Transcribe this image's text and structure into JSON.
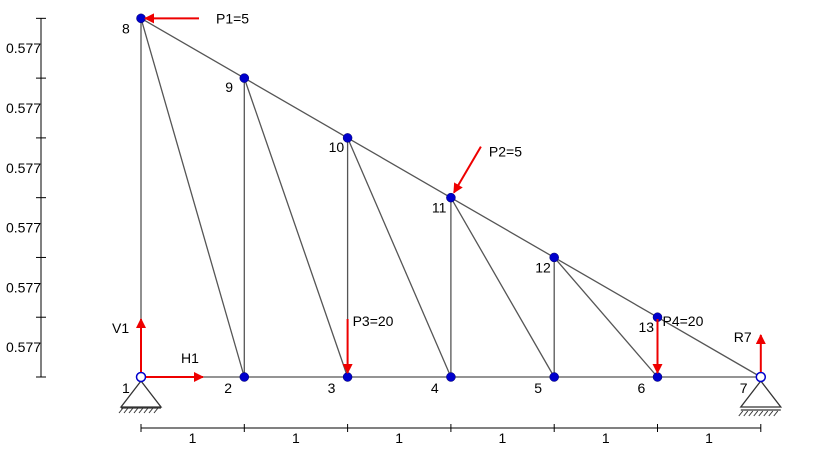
{
  "diagram": {
    "nodes": [
      {
        "id": "1",
        "label": "1",
        "x": 0,
        "y": 0,
        "support": "pin"
      },
      {
        "id": "2",
        "label": "2",
        "x": 1,
        "y": 0
      },
      {
        "id": "3",
        "label": "3",
        "x": 2,
        "y": 0
      },
      {
        "id": "4",
        "label": "4",
        "x": 3,
        "y": 0
      },
      {
        "id": "5",
        "label": "5",
        "x": 4,
        "y": 0
      },
      {
        "id": "6",
        "label": "6",
        "x": 5,
        "y": 0
      },
      {
        "id": "7",
        "label": "7",
        "x": 6,
        "y": 0,
        "support": "roller"
      },
      {
        "id": "8",
        "label": "8",
        "x": 0,
        "y": 3.462
      },
      {
        "id": "9",
        "label": "9",
        "x": 1,
        "y": 2.885
      },
      {
        "id": "10",
        "label": "10",
        "x": 2,
        "y": 2.308
      },
      {
        "id": "11",
        "label": "11",
        "x": 3,
        "y": 1.731
      },
      {
        "id": "12",
        "label": "12",
        "x": 4,
        "y": 1.154
      },
      {
        "id": "13",
        "label": "13",
        "x": 5,
        "y": 0.577
      }
    ],
    "members": [
      [
        "1",
        "2"
      ],
      [
        "2",
        "3"
      ],
      [
        "3",
        "4"
      ],
      [
        "4",
        "5"
      ],
      [
        "5",
        "6"
      ],
      [
        "6",
        "7"
      ],
      [
        "8",
        "9"
      ],
      [
        "9",
        "10"
      ],
      [
        "10",
        "11"
      ],
      [
        "11",
        "12"
      ],
      [
        "12",
        "13"
      ],
      [
        "13",
        "7"
      ],
      [
        "1",
        "8"
      ],
      [
        "2",
        "9"
      ],
      [
        "3",
        "10"
      ],
      [
        "4",
        "11"
      ],
      [
        "5",
        "12"
      ],
      [
        "6",
        "13"
      ],
      [
        "8",
        "2"
      ],
      [
        "9",
        "3"
      ],
      [
        "10",
        "4"
      ],
      [
        "11",
        "5"
      ],
      [
        "12",
        "6"
      ]
    ],
    "loads": [
      {
        "node": "8",
        "label": "P1=5",
        "direction": "left"
      },
      {
        "node": "11",
        "label": "P2=5",
        "direction": "down-left"
      },
      {
        "node": "3",
        "label": "P3=20",
        "direction": "down"
      },
      {
        "node": "6",
        "label": "P4=20",
        "direction": "down"
      }
    ],
    "reactions": [
      {
        "node": "1",
        "label": "V1",
        "direction": "up"
      },
      {
        "node": "1",
        "label": "H1",
        "direction": "right"
      },
      {
        "node": "7",
        "label": "R7",
        "direction": "up"
      }
    ],
    "vertical_dimensions": [
      "0.577",
      "0.577",
      "0.577",
      "0.577",
      "0.577",
      "0.577"
    ],
    "horizontal_dimensions": [
      "1",
      "1",
      "1",
      "1",
      "1",
      "1"
    ],
    "colors": {
      "member": "#555555",
      "node": "#0000cc",
      "load": "#ee0000",
      "support": "#333333"
    }
  }
}
